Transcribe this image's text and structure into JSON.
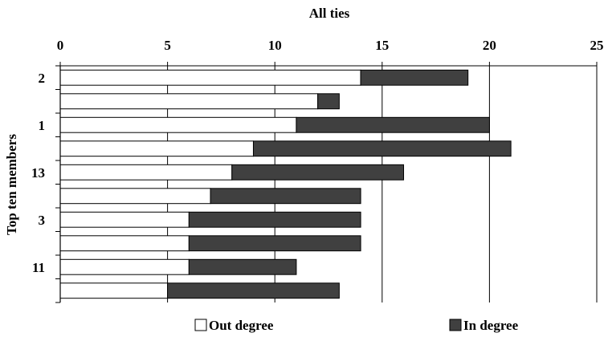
{
  "chart_data": {
    "type": "bar",
    "orientation": "horizontal",
    "stacked": true,
    "title": "All ties",
    "xlabel": "",
    "ylabel": "Top ten members",
    "xlim": [
      0,
      25
    ],
    "x_ticks": [
      "0",
      "5",
      "10",
      "15",
      "20",
      "25"
    ],
    "categories": [
      "2",
      "",
      "1",
      "",
      "13",
      "",
      "3",
      "",
      "11",
      ""
    ],
    "series": [
      {
        "name": "Out degree",
        "color": "#ffffff",
        "values": [
          14,
          12,
          11,
          9,
          8,
          7,
          6,
          6,
          6,
          5
        ]
      },
      {
        "name": "In degree",
        "color": "#404040",
        "values": [
          5,
          1,
          9,
          12,
          8,
          7,
          8,
          8,
          5,
          8
        ]
      }
    ],
    "grid": true,
    "legend_position": "bottom"
  }
}
